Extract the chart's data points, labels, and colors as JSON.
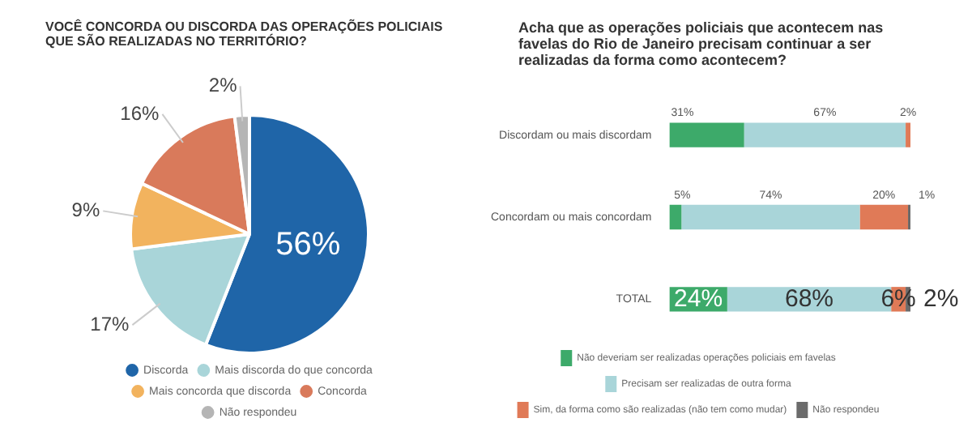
{
  "chart_data": [
    {
      "type": "pie",
      "title": "VOCÊ CONCORDA OU DISCORDA DAS OPERAÇÕES POLICIAIS QUE SÃO REALIZADAS NO TERRITÓRIO?",
      "categories": [
        "Discorda",
        "Mais discorda do que concorda",
        "Mais concorda que discorda",
        "Concorda",
        "Não respondeu"
      ],
      "values": [
        56,
        17,
        9,
        16,
        2
      ],
      "value_labels": [
        "56%",
        "17%",
        "9%",
        "16%",
        "2%"
      ],
      "colors": [
        "#1f65a8",
        "#a9d5d9",
        "#f2b35e",
        "#d97a5b",
        "#b5b5b5"
      ],
      "legend": "bottom"
    },
    {
      "type": "bar",
      "orientation": "horizontal",
      "stacked": true,
      "tick_labels": "y",
      "legend": "bottom",
      "title": "Acha que as operações policiais que acontecem nas favelas do Rio de Janeiro precisam continuar a ser realizadas da forma como acontecem?",
      "categories": [
        "Discordam ou mais discordam",
        "Concordam ou mais concordam",
        "TOTAL"
      ],
      "series": [
        {
          "name": "Não deveriam ser realizadas operações policiais em favelas",
          "color": "#3daa6a",
          "values": [
            31,
            5,
            24
          ],
          "value_labels": [
            "31%",
            "5%",
            "24%"
          ]
        },
        {
          "name": "Precisam ser realizadas de outra forma",
          "color": "#a9d5d9",
          "values": [
            67,
            74,
            68
          ],
          "value_labels": [
            "67%",
            "74%",
            "68%"
          ]
        },
        {
          "name": "Sim, da forma como são realizadas (não tem como mudar)",
          "color": "#e07a57",
          "values": [
            2,
            20,
            6
          ],
          "value_labels": [
            "2%",
            "20%",
            "6%"
          ]
        },
        {
          "name": "Não respondeu",
          "color": "#6b6b6b",
          "values": [
            null,
            1,
            2
          ],
          "value_labels": [
            null,
            "1%",
            "2%"
          ]
        }
      ]
    }
  ]
}
